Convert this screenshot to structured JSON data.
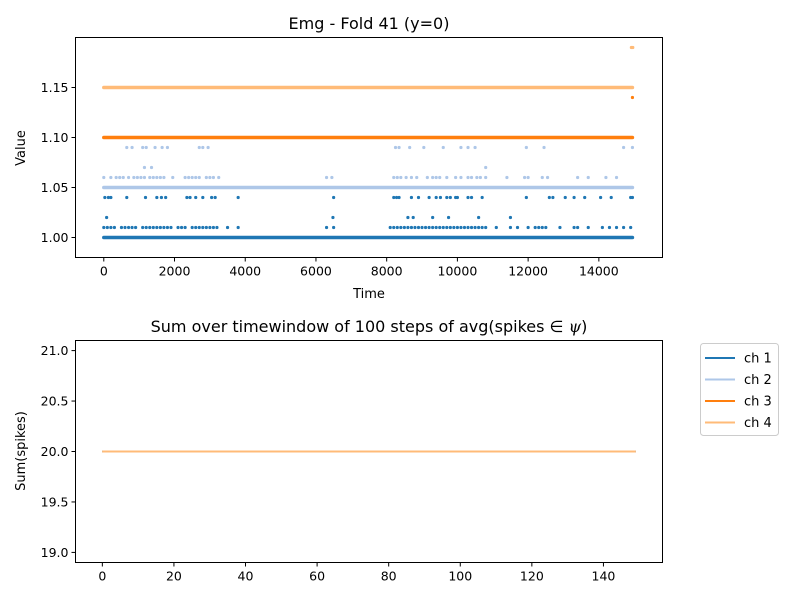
{
  "chart_data": [
    {
      "type": "scatter",
      "title": "Emg - Fold 41 (y=0)",
      "xlabel": "Time",
      "ylabel": "Value",
      "xlim": [
        -800,
        15800
      ],
      "ylim": [
        0.98,
        1.2
      ],
      "xticks": [
        0,
        2000,
        4000,
        6000,
        8000,
        10000,
        12000,
        14000
      ],
      "yticks": [
        1.0,
        1.05,
        1.1,
        1.15
      ],
      "ytick_labels": [
        "1.00",
        "1.05",
        "1.10",
        "1.15"
      ],
      "grid": false,
      "series": [
        {
          "color": "#1f77b4",
          "baseline": {
            "y": 1.0,
            "x_range": [
              0,
              14950
            ]
          },
          "points": [
            [
              30,
              1.04
            ],
            [
              80,
              1.02
            ],
            [
              130,
              1.04
            ],
            [
              200,
              1.04
            ],
            [
              650,
              1.04
            ],
            [
              1180,
              1.04
            ],
            [
              1500,
              1.04
            ],
            [
              1630,
              1.04
            ],
            [
              1750,
              1.04
            ],
            [
              2350,
              1.04
            ],
            [
              2440,
              1.04
            ],
            [
              2600,
              1.04
            ],
            [
              2800,
              1.04
            ],
            [
              3050,
              1.04
            ],
            [
              3150,
              1.04
            ],
            [
              3800,
              1.04
            ],
            [
              6500,
              1.04
            ],
            [
              6480,
              1.02
            ],
            [
              8200,
              1.04
            ],
            [
              8280,
              1.04
            ],
            [
              8350,
              1.04
            ],
            [
              8600,
              1.02
            ],
            [
              8700,
              1.04
            ],
            [
              8750,
              1.02
            ],
            [
              8900,
              1.04
            ],
            [
              9200,
              1.04
            ],
            [
              9300,
              1.02
            ],
            [
              9400,
              1.04
            ],
            [
              9520,
              1.04
            ],
            [
              9700,
              1.04
            ],
            [
              9750,
              1.02
            ],
            [
              9800,
              1.04
            ],
            [
              9950,
              1.04
            ],
            [
              10000,
              1.04
            ],
            [
              10300,
              1.04
            ],
            [
              10400,
              1.04
            ],
            [
              10600,
              1.02
            ],
            [
              10700,
              1.04
            ],
            [
              11500,
              1.02
            ],
            [
              11950,
              1.04
            ],
            [
              12600,
              1.04
            ],
            [
              12700,
              1.04
            ],
            [
              13050,
              1.04
            ],
            [
              13300,
              1.04
            ],
            [
              13600,
              1.04
            ],
            [
              14050,
              1.04
            ],
            [
              14350,
              1.04
            ],
            [
              14900,
              1.04
            ],
            [
              14950,
              1.04
            ],
            [
              0,
              1.01
            ],
            [
              100,
              1.01
            ],
            [
              200,
              1.01
            ],
            [
              300,
              1.01
            ],
            [
              500,
              1.01
            ],
            [
              600,
              1.01
            ],
            [
              700,
              1.01
            ],
            [
              800,
              1.01
            ],
            [
              900,
              1.01
            ],
            [
              1100,
              1.01
            ],
            [
              1200,
              1.01
            ],
            [
              1300,
              1.01
            ],
            [
              1400,
              1.01
            ],
            [
              1500,
              1.01
            ],
            [
              1600,
              1.01
            ],
            [
              1700,
              1.01
            ],
            [
              1800,
              1.01
            ],
            [
              1900,
              1.01
            ],
            [
              2100,
              1.01
            ],
            [
              2200,
              1.01
            ],
            [
              2300,
              1.01
            ],
            [
              2500,
              1.01
            ],
            [
              2600,
              1.01
            ],
            [
              2700,
              1.01
            ],
            [
              2800,
              1.01
            ],
            [
              2900,
              1.01
            ],
            [
              3000,
              1.01
            ],
            [
              3100,
              1.01
            ],
            [
              3200,
              1.01
            ],
            [
              3500,
              1.01
            ],
            [
              3800,
              1.01
            ],
            [
              6300,
              1.01
            ],
            [
              6500,
              1.01
            ],
            [
              8100,
              1.01
            ],
            [
              8200,
              1.01
            ],
            [
              8300,
              1.01
            ],
            [
              8400,
              1.01
            ],
            [
              8500,
              1.01
            ],
            [
              8600,
              1.01
            ],
            [
              8700,
              1.01
            ],
            [
              8800,
              1.01
            ],
            [
              8900,
              1.01
            ],
            [
              9000,
              1.01
            ],
            [
              9100,
              1.01
            ],
            [
              9200,
              1.01
            ],
            [
              9300,
              1.01
            ],
            [
              9400,
              1.01
            ],
            [
              9500,
              1.01
            ],
            [
              9600,
              1.01
            ],
            [
              9700,
              1.01
            ],
            [
              9800,
              1.01
            ],
            [
              9900,
              1.01
            ],
            [
              10000,
              1.01
            ],
            [
              10100,
              1.01
            ],
            [
              10200,
              1.01
            ],
            [
              10300,
              1.01
            ],
            [
              10400,
              1.01
            ],
            [
              10500,
              1.01
            ],
            [
              10600,
              1.01
            ],
            [
              10700,
              1.01
            ],
            [
              10800,
              1.01
            ],
            [
              11100,
              1.01
            ],
            [
              11500,
              1.01
            ],
            [
              11700,
              1.01
            ],
            [
              12000,
              1.01
            ],
            [
              12200,
              1.01
            ],
            [
              12300,
              1.01
            ],
            [
              12400,
              1.01
            ],
            [
              12500,
              1.01
            ],
            [
              12900,
              1.01
            ],
            [
              13300,
              1.01
            ],
            [
              13400,
              1.01
            ],
            [
              13700,
              1.01
            ],
            [
              14100,
              1.01
            ],
            [
              14300,
              1.01
            ],
            [
              14500,
              1.01
            ],
            [
              14700,
              1.01
            ],
            [
              14900,
              1.01
            ]
          ]
        },
        {
          "color": "#aec7e8",
          "baseline": {
            "y": 1.05,
            "x_range": [
              0,
              14950
            ]
          },
          "points": [
            [
              0,
              1.06
            ],
            [
              200,
              1.06
            ],
            [
              350,
              1.06
            ],
            [
              450,
              1.06
            ],
            [
              550,
              1.06
            ],
            [
              700,
              1.06
            ],
            [
              850,
              1.06
            ],
            [
              950,
              1.06
            ],
            [
              1050,
              1.06
            ],
            [
              1150,
              1.06
            ],
            [
              1300,
              1.06
            ],
            [
              1400,
              1.06
            ],
            [
              1500,
              1.06
            ],
            [
              1600,
              1.06
            ],
            [
              1700,
              1.06
            ],
            [
              1950,
              1.06
            ],
            [
              2300,
              1.06
            ],
            [
              2400,
              1.06
            ],
            [
              2500,
              1.06
            ],
            [
              2600,
              1.06
            ],
            [
              2700,
              1.06
            ],
            [
              2900,
              1.06
            ],
            [
              3000,
              1.06
            ],
            [
              3100,
              1.06
            ],
            [
              3250,
              1.06
            ],
            [
              6300,
              1.06
            ],
            [
              6450,
              1.06
            ],
            [
              8200,
              1.06
            ],
            [
              8300,
              1.06
            ],
            [
              8400,
              1.06
            ],
            [
              8550,
              1.06
            ],
            [
              8700,
              1.06
            ],
            [
              8850,
              1.06
            ],
            [
              9150,
              1.06
            ],
            [
              9300,
              1.06
            ],
            [
              9400,
              1.06
            ],
            [
              9500,
              1.06
            ],
            [
              9700,
              1.06
            ],
            [
              9950,
              1.06
            ],
            [
              10100,
              1.06
            ],
            [
              10300,
              1.06
            ],
            [
              10400,
              1.06
            ],
            [
              10550,
              1.06
            ],
            [
              10650,
              1.06
            ],
            [
              10800,
              1.06
            ],
            [
              11400,
              1.06
            ],
            [
              11900,
              1.06
            ],
            [
              12000,
              1.06
            ],
            [
              12400,
              1.06
            ],
            [
              12550,
              1.06
            ],
            [
              13400,
              1.06
            ],
            [
              13700,
              1.06
            ],
            [
              14200,
              1.06
            ],
            [
              14500,
              1.06
            ],
            [
              650,
              1.09
            ],
            [
              800,
              1.09
            ],
            [
              1100,
              1.09
            ],
            [
              1200,
              1.09
            ],
            [
              1450,
              1.09
            ],
            [
              1650,
              1.09
            ],
            [
              1800,
              1.09
            ],
            [
              2700,
              1.09
            ],
            [
              2800,
              1.09
            ],
            [
              2950,
              1.09
            ],
            [
              8250,
              1.09
            ],
            [
              8350,
              1.09
            ],
            [
              8650,
              1.09
            ],
            [
              9050,
              1.09
            ],
            [
              9600,
              1.09
            ],
            [
              10100,
              1.09
            ],
            [
              10300,
              1.09
            ],
            [
              10500,
              1.09
            ],
            [
              11950,
              1.09
            ],
            [
              12450,
              1.09
            ],
            [
              14700,
              1.09
            ],
            [
              14950,
              1.09
            ],
            [
              1150,
              1.07
            ],
            [
              1350,
              1.07
            ],
            [
              10800,
              1.07
            ]
          ]
        },
        {
          "color": "#ff7f0e",
          "baseline": {
            "y": 1.1,
            "x_range": [
              0,
              14950
            ]
          },
          "points": [
            [
              14950,
              1.14
            ]
          ]
        },
        {
          "color": "#ffbb78",
          "baseline": {
            "y": 1.15,
            "x_range": [
              0,
              14950
            ]
          },
          "points": [
            [
              14920,
              1.19
            ],
            [
              14960,
              1.19
            ]
          ]
        }
      ]
    },
    {
      "type": "line",
      "title": "Sum over timewindow of 100 steps of avg(spikes ∈ ψ)",
      "title_parts": [
        "Sum over timewindow of 100 steps of avg(spikes ",
        "∈",
        " ψ",
        ")"
      ],
      "xlabel": "",
      "ylabel": "Sum(spikes)",
      "xlim": [
        -7.5,
        156.5
      ],
      "ylim": [
        18.9,
        21.1
      ],
      "xticks": [
        0,
        20,
        40,
        60,
        80,
        100,
        120,
        140
      ],
      "yticks": [
        19.0,
        19.5,
        20.0,
        20.5,
        21.0
      ],
      "ytick_labels": [
        "19.0",
        "19.5",
        "20.0",
        "20.5",
        "21.0"
      ],
      "grid": false,
      "legend_position": "outside-right-top",
      "series": [
        {
          "name": "ch 1",
          "color": "#1f77b4",
          "x_range": [
            0,
            149
          ],
          "y": 20.0
        },
        {
          "name": "ch 2",
          "color": "#aec7e8",
          "x_range": [
            0,
            149
          ],
          "y": 20.0
        },
        {
          "name": "ch 3",
          "color": "#ff7f0e",
          "x_range": [
            0,
            149
          ],
          "y": 20.0
        },
        {
          "name": "ch 4",
          "color": "#ffbb78",
          "x_range": [
            0,
            149
          ],
          "y": 20.0
        }
      ]
    }
  ]
}
